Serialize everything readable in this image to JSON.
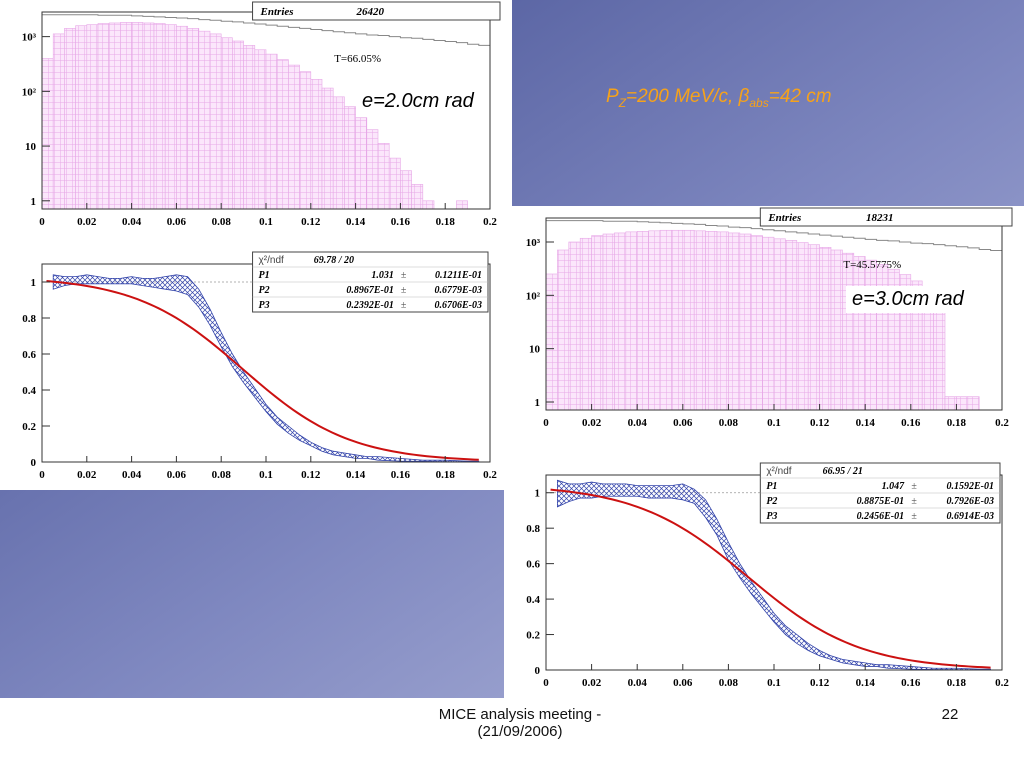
{
  "slide": {
    "title": "P_Z=200 MeV/c, β_abs=42 cm",
    "footer_text": "MICE analysis meeting -",
    "footer_date": "(21/09/2006)",
    "page_number": "22",
    "colors": {
      "title": "#f6a21a",
      "fill": "#e7a8e7",
      "fit_line": "#cc1111",
      "band": "#3344aa"
    }
  },
  "left_label": "e=2.0cm rad",
  "right_label": "e=3.0cm rad",
  "chart_data": [
    {
      "type": "histogram",
      "name": "left-top",
      "stats": {
        "entries_label": "Entries",
        "entries": "26420",
        "transmission": "T=66.05%"
      },
      "x_ticks": [
        "0",
        "0.02",
        "0.04",
        "0.06",
        "0.08",
        "0.1",
        "0.12",
        "0.14",
        "0.16",
        "0.18",
        "0.2"
      ],
      "y_ticks": [
        "1",
        "10",
        "10²",
        "10³"
      ],
      "xlim": [
        0,
        0.2
      ],
      "ylim_log10": [
        -0.15,
        3.45
      ],
      "x": [
        0.0,
        0.005,
        0.01,
        0.015,
        0.02,
        0.025,
        0.03,
        0.035,
        0.04,
        0.045,
        0.05,
        0.055,
        0.06,
        0.065,
        0.07,
        0.075,
        0.08,
        0.085,
        0.09,
        0.095,
        0.1,
        0.105,
        0.11,
        0.115,
        0.12,
        0.125,
        0.13,
        0.135,
        0.14,
        0.145,
        0.15,
        0.155,
        0.16,
        0.165,
        0.17,
        0.175,
        0.18,
        0.185,
        0.19,
        0.195
      ],
      "values_log10": [
        2.6,
        3.05,
        3.15,
        3.2,
        3.22,
        3.24,
        3.25,
        3.26,
        3.26,
        3.25,
        3.24,
        3.22,
        3.19,
        3.15,
        3.1,
        3.05,
        2.98,
        2.92,
        2.84,
        2.76,
        2.68,
        2.58,
        2.48,
        2.36,
        2.22,
        2.06,
        1.9,
        1.72,
        1.52,
        1.3,
        1.05,
        0.78,
        0.55,
        0.3,
        0.0,
        null,
        null,
        0.0,
        null,
        null
      ],
      "envelope_log10": [
        3.4,
        3.4,
        3.4,
        3.4,
        3.4,
        3.39,
        3.39,
        3.39,
        3.38,
        3.37,
        3.36,
        3.35,
        3.34,
        3.33,
        3.31,
        3.3,
        3.28,
        3.27,
        3.25,
        3.23,
        3.21,
        3.19,
        3.17,
        3.15,
        3.13,
        3.11,
        3.09,
        3.07,
        3.05,
        3.03,
        3.02,
        3.0,
        2.98,
        2.97,
        2.95,
        2.93,
        2.91,
        2.89,
        2.86,
        2.84
      ]
    },
    {
      "type": "line",
      "name": "left-bottom",
      "fit": {
        "chi2_label": "χ²/ndf",
        "chi2": "69.78   /   20",
        "params": [
          {
            "name": "P1",
            "value": "1.031",
            "error": "0.1211E-01"
          },
          {
            "name": "P2",
            "value": "0.8967E-01",
            "error": "0.6779E-03"
          },
          {
            "name": "P3",
            "value": "0.2392E-01",
            "error": "0.6706E-03"
          }
        ]
      },
      "x_ticks": [
        "0",
        "0.02",
        "0.04",
        "0.06",
        "0.08",
        "0.1",
        "0.12",
        "0.14",
        "0.16",
        "0.18",
        "0.2"
      ],
      "y_ticks": [
        "0",
        "0.2",
        "0.4",
        "0.6",
        "0.8",
        "1"
      ],
      "xlim": [
        0,
        0.2
      ],
      "ylim": [
        0,
        1.1
      ],
      "P1": 1.031,
      "P2": 0.08967,
      "P3": 0.02392,
      "band_x": [
        0.005,
        0.01,
        0.015,
        0.02,
        0.025,
        0.03,
        0.035,
        0.04,
        0.045,
        0.05,
        0.055,
        0.06,
        0.065,
        0.07,
        0.075,
        0.08,
        0.085,
        0.09,
        0.095,
        0.1,
        0.105,
        0.11,
        0.115,
        0.12,
        0.125,
        0.13,
        0.135,
        0.14,
        0.145,
        0.15,
        0.16,
        0.17,
        0.18,
        0.19,
        0.195
      ],
      "band_hi": [
        1.04,
        1.03,
        1.03,
        1.04,
        1.03,
        1.02,
        1.02,
        1.03,
        1.02,
        1.02,
        1.03,
        1.04,
        1.03,
        0.96,
        0.85,
        0.72,
        0.6,
        0.5,
        0.41,
        0.32,
        0.25,
        0.2,
        0.15,
        0.11,
        0.08,
        0.06,
        0.05,
        0.04,
        0.03,
        0.03,
        0.02,
        0.01,
        0.01,
        0.005,
        0.005
      ],
      "band_lo": [
        0.96,
        0.98,
        0.99,
        0.99,
        0.99,
        0.99,
        0.99,
        0.99,
        0.98,
        0.97,
        0.96,
        0.95,
        0.93,
        0.86,
        0.76,
        0.64,
        0.53,
        0.44,
        0.36,
        0.28,
        0.21,
        0.16,
        0.12,
        0.09,
        0.06,
        0.04,
        0.03,
        0.02,
        0.02,
        0.01,
        0.005,
        0.003,
        0.002,
        0.001,
        0.001
      ]
    },
    {
      "type": "histogram",
      "name": "right-top",
      "stats": {
        "entries_label": "Entries",
        "entries": "18231",
        "transmission": "T=45.5775%"
      },
      "x_ticks": [
        "0",
        "0.02",
        "0.04",
        "0.06",
        "0.08",
        "0.1",
        "0.12",
        "0.14",
        "0.16",
        "0.18",
        "0.2"
      ],
      "y_ticks": [
        "1",
        "10",
        "10²",
        "10³"
      ],
      "xlim": [
        0,
        0.2
      ],
      "ylim_log10": [
        -0.15,
        3.45
      ],
      "x": [
        0.0,
        0.005,
        0.01,
        0.015,
        0.02,
        0.025,
        0.03,
        0.035,
        0.04,
        0.045,
        0.05,
        0.055,
        0.06,
        0.065,
        0.07,
        0.075,
        0.08,
        0.085,
        0.09,
        0.095,
        0.1,
        0.105,
        0.11,
        0.115,
        0.12,
        0.125,
        0.13,
        0.135,
        0.14,
        0.145,
        0.15,
        0.155,
        0.16,
        0.165,
        0.17,
        0.175,
        0.18,
        0.185,
        0.19,
        0.195
      ],
      "values_log10": [
        2.4,
        2.85,
        3.0,
        3.07,
        3.12,
        3.15,
        3.17,
        3.19,
        3.2,
        3.21,
        3.22,
        3.22,
        3.22,
        3.21,
        3.2,
        3.19,
        3.17,
        3.15,
        3.12,
        3.09,
        3.06,
        3.03,
        2.99,
        2.95,
        2.9,
        2.85,
        2.79,
        2.73,
        2.66,
        2.58,
        2.49,
        2.39,
        2.27,
        2.13,
        1.95,
        0.1,
        0.1,
        0.1,
        null,
        null
      ],
      "envelope_log10": [
        3.4,
        3.4,
        3.4,
        3.4,
        3.4,
        3.39,
        3.39,
        3.39,
        3.38,
        3.37,
        3.36,
        3.35,
        3.34,
        3.33,
        3.31,
        3.3,
        3.28,
        3.27,
        3.25,
        3.23,
        3.21,
        3.19,
        3.17,
        3.15,
        3.13,
        3.11,
        3.09,
        3.07,
        3.05,
        3.03,
        3.02,
        3.0,
        2.98,
        2.97,
        2.95,
        2.93,
        2.91,
        2.89,
        2.86,
        2.84
      ]
    },
    {
      "type": "line",
      "name": "right-bottom",
      "fit": {
        "chi2_label": "χ²/ndf",
        "chi2": "66.95   /   21",
        "params": [
          {
            "name": "P1",
            "value": "1.047",
            "error": "0.1592E-01"
          },
          {
            "name": "P2",
            "value": "0.8875E-01",
            "error": "0.7926E-03"
          },
          {
            "name": "P3",
            "value": "0.2456E-01",
            "error": "0.6914E-03"
          }
        ]
      },
      "x_ticks": [
        "0",
        "0.02",
        "0.04",
        "0.06",
        "0.08",
        "0.1",
        "0.12",
        "0.14",
        "0.16",
        "0.18",
        "0.2"
      ],
      "y_ticks": [
        "0",
        "0.2",
        "0.4",
        "0.6",
        "0.8",
        "1"
      ],
      "xlim": [
        0,
        0.2
      ],
      "ylim": [
        0,
        1.1
      ],
      "P1": 1.047,
      "P2": 0.08875,
      "P3": 0.02456,
      "band_x": [
        0.005,
        0.01,
        0.015,
        0.02,
        0.025,
        0.03,
        0.035,
        0.04,
        0.045,
        0.05,
        0.055,
        0.06,
        0.065,
        0.07,
        0.075,
        0.08,
        0.085,
        0.09,
        0.095,
        0.1,
        0.105,
        0.11,
        0.115,
        0.12,
        0.125,
        0.13,
        0.135,
        0.14,
        0.145,
        0.15,
        0.16,
        0.17,
        0.18,
        0.19,
        0.195
      ],
      "band_hi": [
        1.07,
        1.05,
        1.05,
        1.06,
        1.05,
        1.05,
        1.05,
        1.04,
        1.04,
        1.04,
        1.04,
        1.05,
        1.02,
        0.96,
        0.85,
        0.72,
        0.6,
        0.5,
        0.41,
        0.32,
        0.25,
        0.2,
        0.15,
        0.11,
        0.08,
        0.06,
        0.05,
        0.04,
        0.03,
        0.03,
        0.02,
        0.01,
        0.01,
        0.005,
        0.005
      ],
      "band_lo": [
        0.92,
        0.95,
        0.97,
        0.97,
        0.98,
        0.98,
        0.98,
        0.98,
        0.97,
        0.97,
        0.97,
        0.96,
        0.94,
        0.86,
        0.76,
        0.62,
        0.52,
        0.43,
        0.35,
        0.27,
        0.2,
        0.15,
        0.11,
        0.08,
        0.06,
        0.04,
        0.03,
        0.02,
        0.02,
        0.01,
        0.005,
        0.003,
        0.002,
        0.001,
        0.001
      ]
    }
  ]
}
